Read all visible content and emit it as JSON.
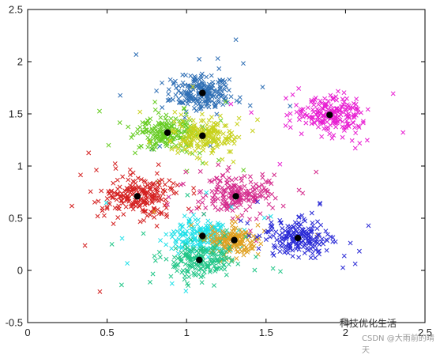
{
  "chart_data": {
    "type": "scatter",
    "title": "",
    "xlabel": "",
    "ylabel": "",
    "xlim": [
      0,
      2.5
    ],
    "ylim": [
      -0.5,
      2.5
    ],
    "xticks": [
      "0",
      "0.5",
      "1",
      "1.5",
      "2",
      "2.5"
    ],
    "yticks": [
      "-0.5",
      "0",
      "0.5",
      "1",
      "1.5",
      "2",
      "2.5"
    ],
    "grid": false,
    "legend": "none",
    "marker": "x",
    "series": [
      {
        "color": "#2f6fb5",
        "center": [
          1.1,
          1.7
        ],
        "spread": 0.1,
        "points": 220
      },
      {
        "color": "#66cc22",
        "center": [
          0.88,
          1.32
        ],
        "spread": 0.09,
        "points": 200
      },
      {
        "color": "#c8d21e",
        "center": [
          1.1,
          1.29
        ],
        "spread": 0.09,
        "points": 200
      },
      {
        "color": "#e81ed2",
        "center": [
          1.9,
          1.49
        ],
        "spread": 0.11,
        "points": 200
      },
      {
        "color": "#d42020",
        "center": [
          0.69,
          0.71
        ],
        "spread": 0.11,
        "points": 220
      },
      {
        "color": "#d42a8c",
        "center": [
          1.31,
          0.71
        ],
        "spread": 0.11,
        "points": 200
      },
      {
        "color": "#20e0e8",
        "center": [
          1.1,
          0.33
        ],
        "spread": 0.09,
        "points": 200
      },
      {
        "color": "#e0a020",
        "center": [
          1.3,
          0.29
        ],
        "spread": 0.08,
        "points": 160
      },
      {
        "color": "#22c688",
        "center": [
          1.08,
          0.1
        ],
        "spread": 0.1,
        "points": 200
      },
      {
        "color": "#2a2ad6",
        "center": [
          1.7,
          0.31
        ],
        "spread": 0.1,
        "points": 200
      }
    ],
    "centroids": [
      {
        "x": 1.1,
        "y": 1.7
      },
      {
        "x": 0.88,
        "y": 1.32
      },
      {
        "x": 1.1,
        "y": 1.29
      },
      {
        "x": 1.9,
        "y": 1.49
      },
      {
        "x": 0.69,
        "y": 0.71
      },
      {
        "x": 1.31,
        "y": 0.71
      },
      {
        "x": 1.1,
        "y": 0.33
      },
      {
        "x": 1.3,
        "y": 0.29
      },
      {
        "x": 1.08,
        "y": 0.1
      },
      {
        "x": 1.7,
        "y": 0.31
      }
    ],
    "centroid_color": "#000000"
  },
  "watermark": {
    "line1": "科技优化生活",
    "line2": "CSDN @大雨前的晴天"
  }
}
